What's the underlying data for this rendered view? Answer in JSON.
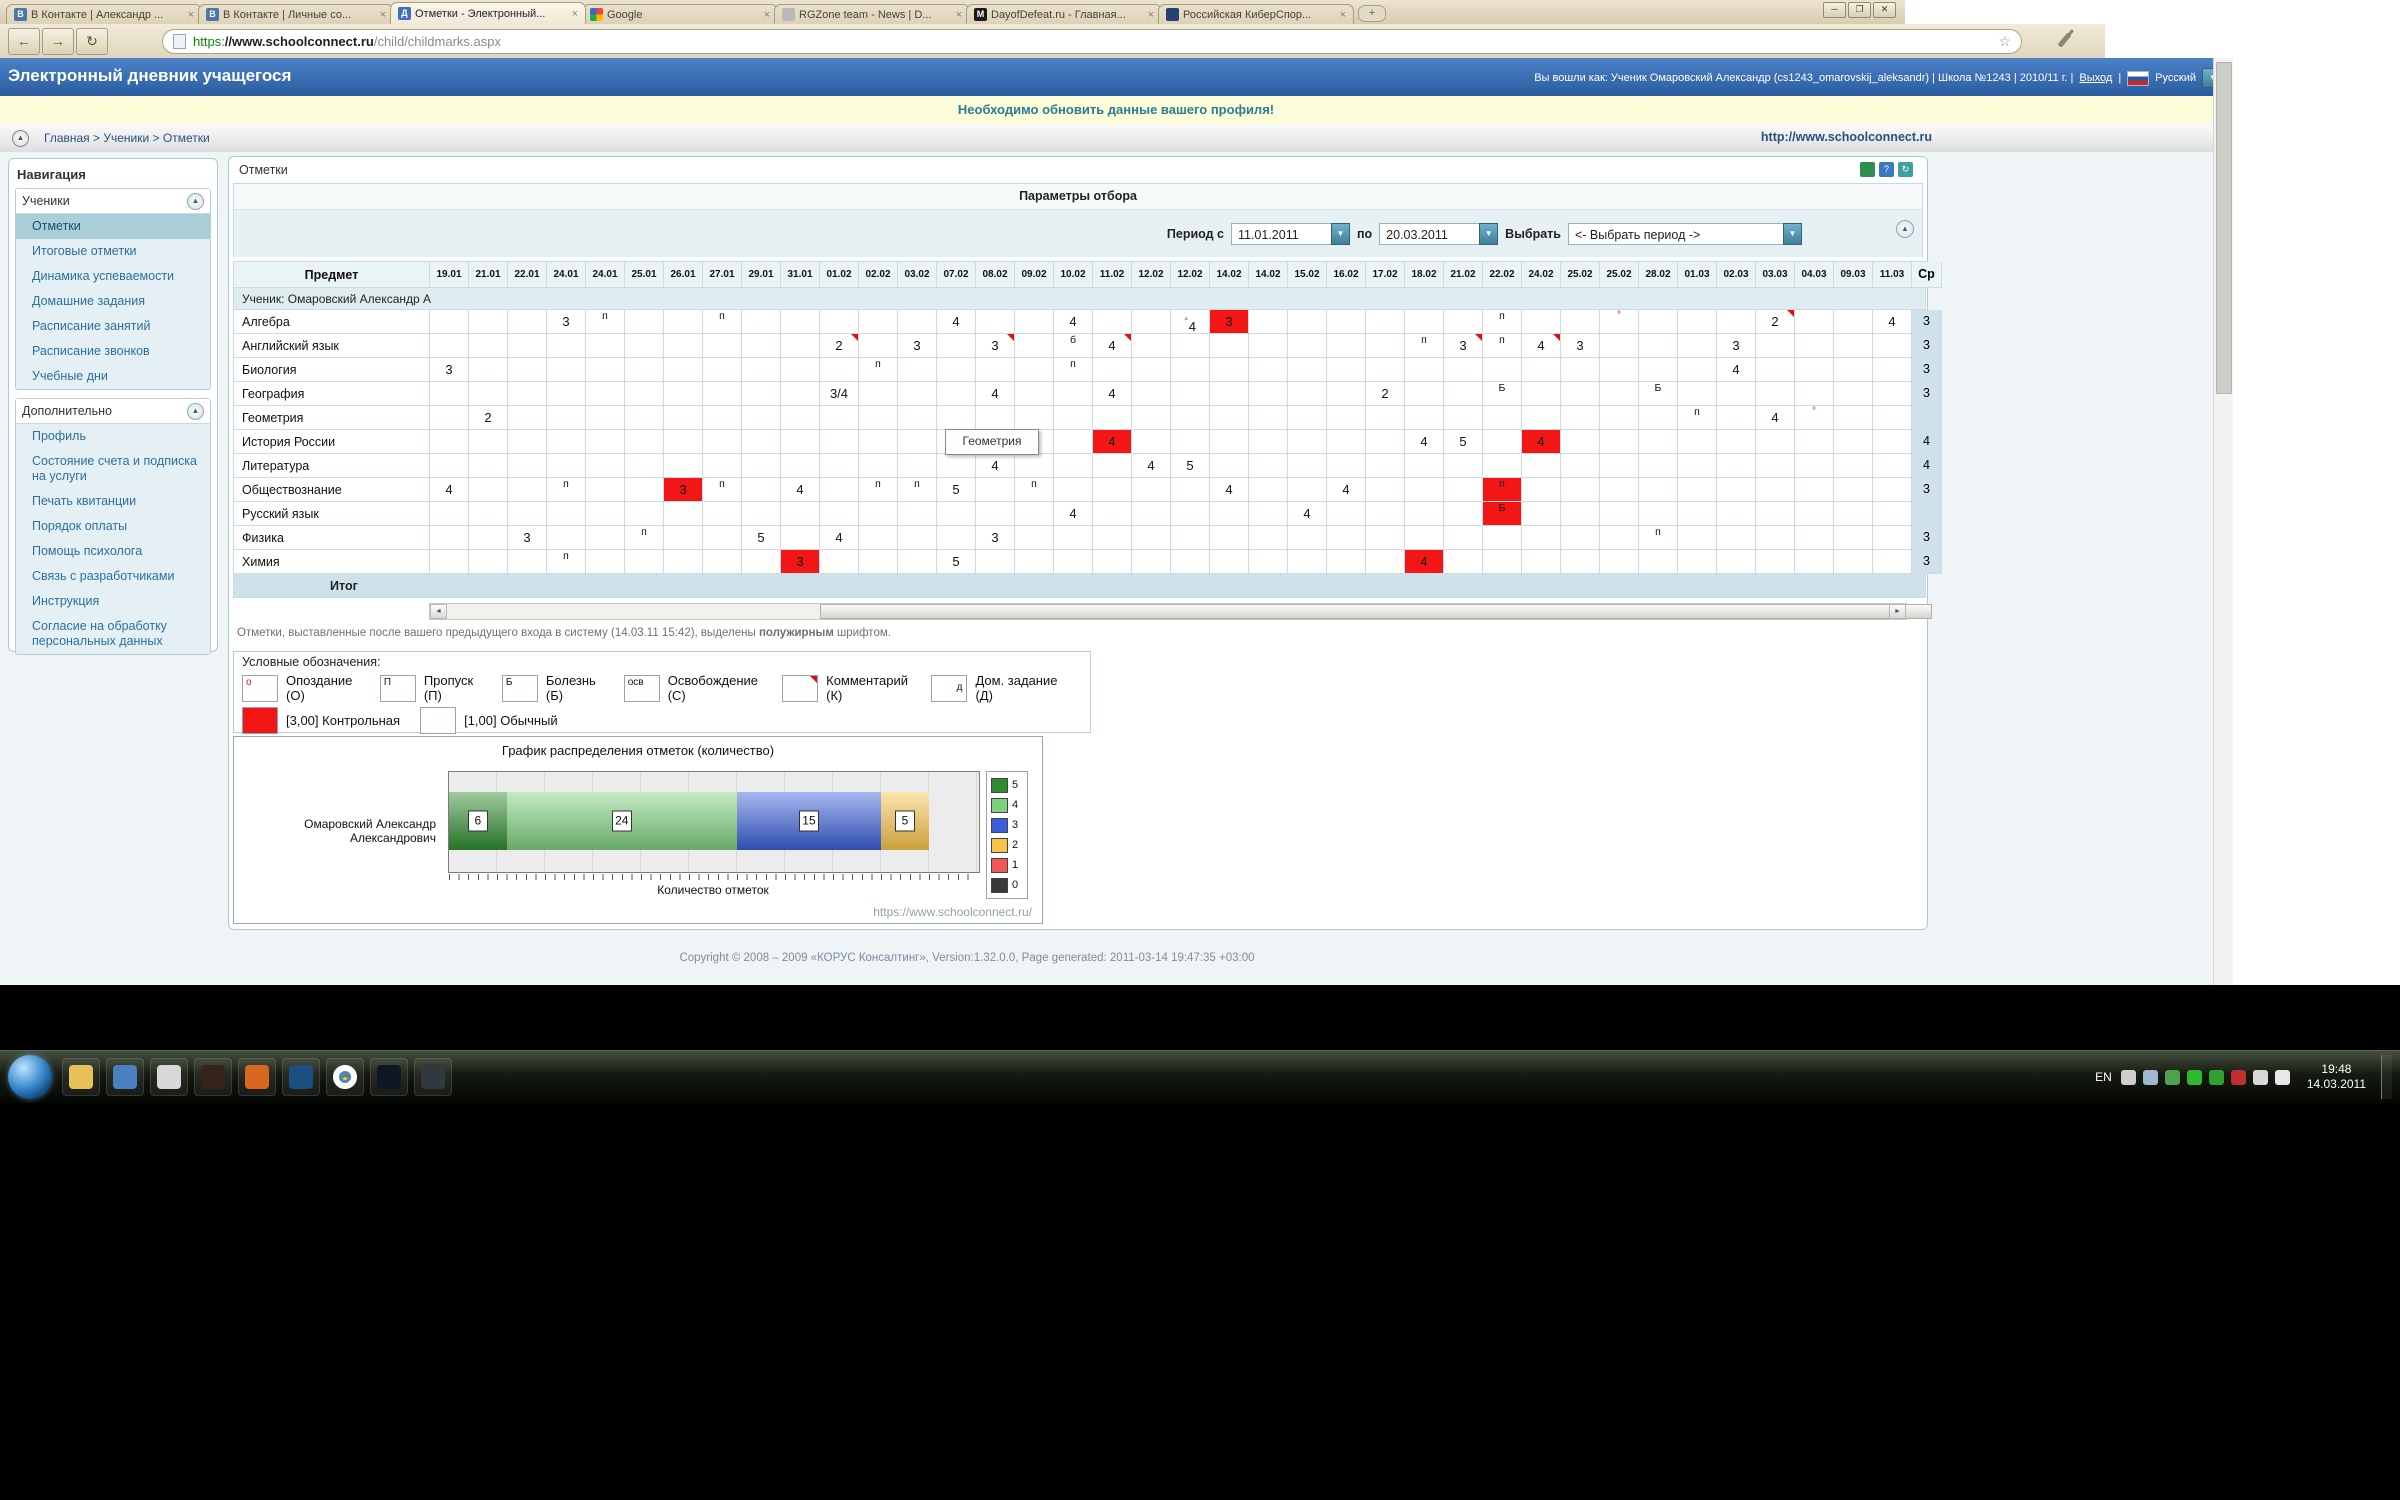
{
  "icons": {
    "close": "×",
    "new_tab": "+",
    "back": "←",
    "forward": "→",
    "reload": "↻",
    "star": "☆",
    "dropdown": "▼",
    "collapse_arrow": "▲",
    "scroll_left": "◄",
    "scroll_right": "►",
    "minimize": "─",
    "restore": "❐",
    "close_win": "✕",
    "home_arrow": "▲"
  },
  "browser": {
    "tabs": [
      {
        "label": "В Контакте | Александр ...",
        "icon": "vk",
        "glyph": "В",
        "active": false
      },
      {
        "label": "В Контакте | Личные со...",
        "icon": "vk",
        "glyph": "В",
        "active": false
      },
      {
        "label": "Отметки - Электронный...",
        "icon": "sc",
        "glyph": "Д",
        "active": true
      },
      {
        "label": "Google",
        "icon": "google",
        "glyph": "",
        "active": false
      },
      {
        "label": "RGZone team - News | D...",
        "icon": "rg",
        "glyph": "",
        "active": false
      },
      {
        "label": "DayofDefeat.ru - Главная...",
        "icon": "dod",
        "glyph": "M",
        "active": false
      },
      {
        "label": "Российская КиберСпор...",
        "icon": "cyber",
        "glyph": "",
        "active": false
      }
    ],
    "url": {
      "scheme": "https:",
      "host": "//www.schoolconnect.ru",
      "path": "/child/childmarks.aspx"
    }
  },
  "header": {
    "title": "Электронный дневник учащегося",
    "user_info": "Вы вошли как: Ученик Омаровский Александр (cs1243_omarovskij_aleksandr) | Школа №1243 | 2010/11 г. |",
    "logout": "Выход",
    "divider": "|",
    "lang": "Русский"
  },
  "notice": "Необходимо обновить данные вашего профиля!",
  "breadcrumb": {
    "path": "Главная > Ученики > Отметки",
    "site": "http://www.schoolconnect.ru"
  },
  "sidebar": {
    "title": "Навигация",
    "groups": [
      {
        "title": "Ученики",
        "selected": "Отметки",
        "items": [
          "Отметки",
          "Итоговые отметки",
          "Динамика успеваемости",
          "Домашние задания",
          "Расписание занятий",
          "Расписание звонков",
          "Учебные дни"
        ]
      },
      {
        "title": "Дополнительно",
        "selected": "",
        "items": [
          "Профиль",
          "Состояние счета и подписка на услуги",
          "Печать квитанции",
          "Порядок оплаты",
          "Помощь психолога",
          "Связь с разработчиками",
          "Инструкция",
          "Согласие на обработку персональных данных"
        ]
      }
    ]
  },
  "main": {
    "title": "Отметки",
    "params": {
      "title": "Параметры отбора",
      "period_label": "Период с",
      "from": "11.01.2011",
      "to_label": "по",
      "to": "20.03.2011",
      "select_label": "Выбрать",
      "select_value": "<- Выбрать период ->"
    },
    "tooltip": "Геометрия",
    "note_parts": [
      "Отметки, выставленные после вашего предыдущего входа в систему (14.03.11 15:42), выделены ",
      "полужирным",
      " шрифтом."
    ]
  },
  "table": {
    "subject_header": "Предмет",
    "avg_header": "Ср",
    "student_row": "Ученик: Омаровский Александр А",
    "total_label": "Итог",
    "dates": [
      "19.01",
      "21.01",
      "22.01",
      "24.01",
      "24.01",
      "25.01",
      "26.01",
      "27.01",
      "29.01",
      "31.01",
      "01.02",
      "02.02",
      "03.02",
      "07.02",
      "08.02",
      "09.02",
      "10.02",
      "11.02",
      "12.02",
      "12.02",
      "14.02",
      "14.02",
      "15.02",
      "16.02",
      "17.02",
      "18.02",
      "21.02",
      "22.02",
      "24.02",
      "25.02",
      "25.02",
      "28.02",
      "01.03",
      "02.03",
      "03.03",
      "04.03",
      "09.03",
      "11.03"
    ],
    "subjects": [
      {
        "name": "Алгебра",
        "avg": "3",
        "marks": [
          [
            3,
            "3",
            "n"
          ],
          [
            4,
            "п",
            "s"
          ],
          [
            7,
            "п",
            "s"
          ],
          [
            13,
            "4",
            "n"
          ],
          [
            16,
            "4",
            "n"
          ],
          [
            19,
            "4",
            "l"
          ],
          [
            20,
            "3",
            "r"
          ],
          [
            27,
            "п",
            "s"
          ],
          [
            30,
            "°",
            "c"
          ],
          [
            34,
            "2",
            "nc"
          ],
          [
            37,
            "4",
            "n"
          ]
        ]
      },
      {
        "name": "Английский язык",
        "avg": "3",
        "marks": [
          [
            10,
            "2",
            "nc"
          ],
          [
            12,
            "3",
            "n"
          ],
          [
            14,
            "3",
            "nc"
          ],
          [
            16,
            "б",
            "s"
          ],
          [
            17,
            "4",
            "nc"
          ],
          [
            25,
            "п",
            "s"
          ],
          [
            26,
            "3",
            "nc"
          ],
          [
            27,
            "п",
            "s"
          ],
          [
            28,
            "4",
            "nc"
          ],
          [
            29,
            "3",
            "n"
          ],
          [
            33,
            "3",
            "n"
          ]
        ]
      },
      {
        "name": "Биология",
        "avg": "3",
        "marks": [
          [
            0,
            "3",
            "n"
          ],
          [
            11,
            "п",
            "s"
          ],
          [
            16,
            "п",
            "s"
          ],
          [
            33,
            "4",
            "n"
          ]
        ]
      },
      {
        "name": "География",
        "avg": "3",
        "marks": [
          [
            10,
            "3/4",
            "n"
          ],
          [
            14,
            "4",
            "n"
          ],
          [
            17,
            "4",
            "n"
          ],
          [
            24,
            "2",
            "n"
          ],
          [
            27,
            "Б",
            "s"
          ],
          [
            31,
            "Б",
            "s"
          ]
        ]
      },
      {
        "name": "Геометрия",
        "avg": "",
        "marks": [
          [
            1,
            "2",
            "n"
          ],
          [
            32,
            "п",
            "s"
          ],
          [
            34,
            "4",
            "n"
          ],
          [
            35,
            "°",
            "c"
          ]
        ]
      },
      {
        "name": "История России",
        "avg": "4",
        "marks": [
          [
            17,
            "4",
            "r"
          ],
          [
            25,
            "4",
            "n"
          ],
          [
            26,
            "5",
            "n"
          ],
          [
            28,
            "4",
            "r"
          ]
        ]
      },
      {
        "name": "Литература",
        "avg": "4",
        "marks": [
          [
            14,
            "4",
            "n"
          ],
          [
            18,
            "4",
            "n"
          ],
          [
            19,
            "5",
            "n"
          ]
        ]
      },
      {
        "name": "Обществознание",
        "avg": "3",
        "marks": [
          [
            0,
            "4",
            "n"
          ],
          [
            3,
            "п",
            "s"
          ],
          [
            6,
            "3",
            "r"
          ],
          [
            7,
            "п",
            "s"
          ],
          [
            9,
            "4",
            "n"
          ],
          [
            11,
            "п",
            "s"
          ],
          [
            12,
            "п",
            "s"
          ],
          [
            13,
            "5",
            "n"
          ],
          [
            15,
            "п",
            "s"
          ],
          [
            20,
            "4",
            "n"
          ],
          [
            23,
            "4",
            "n"
          ],
          [
            27,
            "п",
            "rs"
          ]
        ]
      },
      {
        "name": "Русский язык",
        "avg": "",
        "marks": [
          [
            16,
            "4",
            "n"
          ],
          [
            22,
            "4",
            "n"
          ],
          [
            27,
            "Б",
            "rs"
          ]
        ]
      },
      {
        "name": "Физика",
        "avg": "3",
        "marks": [
          [
            2,
            "3",
            "n"
          ],
          [
            5,
            "п",
            "s"
          ],
          [
            8,
            "5",
            "n"
          ],
          [
            10,
            "4",
            "n"
          ],
          [
            14,
            "3",
            "n"
          ],
          [
            31,
            "п",
            "s"
          ]
        ]
      },
      {
        "name": "Химия",
        "avg": "3",
        "marks": [
          [
            3,
            "п",
            "s"
          ],
          [
            9,
            "3",
            "r"
          ],
          [
            13,
            "5",
            "n"
          ],
          [
            25,
            "4",
            "r"
          ]
        ]
      }
    ]
  },
  "legend": {
    "title": "Условные обозначения:",
    "items": [
      {
        "symbol": "o",
        "style": "red",
        "label": "Опоздание (О)"
      },
      {
        "symbol": "П",
        "style": "plain",
        "label": "Пропуск (П)"
      },
      {
        "symbol": "Б",
        "style": "plain",
        "label": "Болезнь (Б)"
      },
      {
        "symbol": "осв",
        "style": "plain",
        "label": "Освобождение (С)"
      },
      {
        "symbol": "",
        "style": "corner",
        "label": "Комментарий (К)"
      },
      {
        "symbol": "д",
        "style": "right",
        "label": "Дом. задание (Д)"
      }
    ],
    "mark_types": [
      {
        "swatch": "#f21616",
        "label": "[3,00] Контрольная"
      },
      {
        "swatch": "#ffffff",
        "label": "[1,00] Обычный"
      }
    ]
  },
  "chart_data": {
    "type": "bar",
    "orientation": "horizontal-stacked",
    "title": "График распределения отметок (количество)",
    "categories": [
      "Омаровский Александр Александрович"
    ],
    "series": [
      {
        "name": "5",
        "values": [
          6
        ],
        "color": "#2e8b2e"
      },
      {
        "name": "4",
        "values": [
          24
        ],
        "color": "#7ed07e"
      },
      {
        "name": "3",
        "values": [
          15
        ],
        "color": "#3a5fd9"
      },
      {
        "name": "2",
        "values": [
          5
        ],
        "color": "#f7c34a"
      },
      {
        "name": "1",
        "values": [
          0
        ],
        "color": "#f05858"
      },
      {
        "name": "0",
        "values": [
          0
        ],
        "color": "#3a3a3a"
      }
    ],
    "xlabel": "Количество отметок",
    "legend_position": "right",
    "grid": true,
    "watermark": "https://www.schoolconnect.ru/"
  },
  "footer": {
    "prefix": "Copyright © 2008 – 2009 ",
    "link": "«КОРУС Консалтинг»",
    "suffix": ", Version:1.32.0.0, Page generated: 2011-03-14 19:47:35 +03:00"
  },
  "taskbar": {
    "lang": "EN",
    "time": "19:48",
    "date": "14.03.2011",
    "icons": [
      {
        "name": "explorer-folder",
        "color": "#e8c05a"
      },
      {
        "name": "media-player",
        "color": "#4a7fc0"
      },
      {
        "name": "calculator",
        "color": "#d8d8d8"
      },
      {
        "name": "browser-dark",
        "color": "#35241a"
      },
      {
        "name": "aimp",
        "color": "#d86820"
      },
      {
        "name": "wmp",
        "color": "#1a4f80"
      },
      {
        "name": "chrome",
        "color": "chrome"
      },
      {
        "name": "photoshop",
        "color": "#0e1822"
      },
      {
        "name": "steam",
        "color": "#303840"
      }
    ],
    "tray": [
      {
        "name": "hidden-icons-arrow",
        "color": "#cfcfcf"
      },
      {
        "name": "network",
        "color": "#9fb8cf"
      },
      {
        "name": "security-shield",
        "color": "#4fa04f"
      },
      {
        "name": "antivirus",
        "color": "#2fb82f"
      },
      {
        "name": "utorrent",
        "color": "#30a030"
      },
      {
        "name": "update",
        "color": "#c03030"
      },
      {
        "name": "flag",
        "color": "#d8d8d8"
      },
      {
        "name": "volume",
        "color": "#e8e8e8"
      }
    ]
  }
}
